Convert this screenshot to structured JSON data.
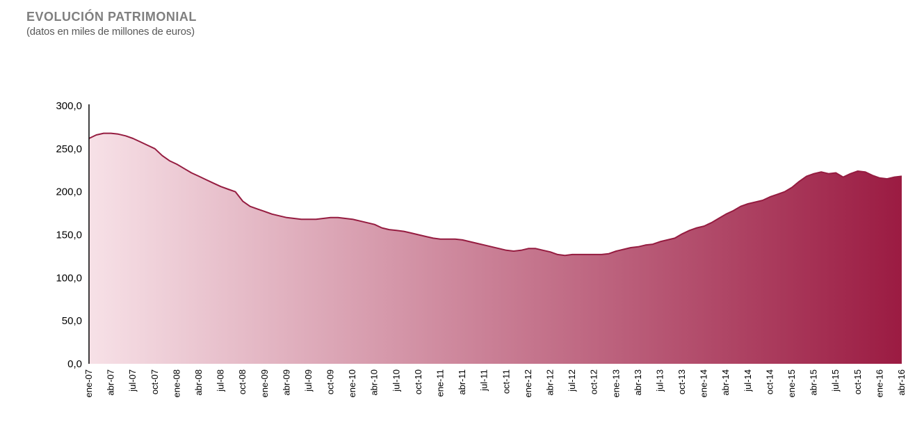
{
  "header": {
    "title": "EVOLUCIÓN PATRIMONIAL",
    "subtitle": "(datos en miles de millones de euros)"
  },
  "chart_data": {
    "type": "area",
    "title": "EVOLUCIÓN PATRIMONIAL",
    "subtitle": "(datos en miles de millones de euros)",
    "ylabel": "",
    "xlabel": "",
    "ylim": [
      0,
      300
    ],
    "grid": false,
    "legend": "none",
    "y_tick_values": [
      0,
      50,
      100,
      150,
      200,
      250,
      300
    ],
    "y_tick_labels": [
      "0,0",
      "50,0",
      "100,0",
      "150,0",
      "200,0",
      "250,0",
      "300,0"
    ],
    "x_tick_interval_months": 3,
    "x_tick_labels": [
      "ene-07",
      "abr-07",
      "jul-07",
      "oct-07",
      "ene-08",
      "abr-08",
      "jul-08",
      "oct-08",
      "ene-09",
      "abr-09",
      "jul-09",
      "oct-09",
      "ene-10",
      "abr-10",
      "jul-10",
      "oct-10",
      "ene-11",
      "abr-11",
      "jul-11",
      "oct-11",
      "ene-12",
      "abr-12",
      "jul-12",
      "oct-12",
      "ene-13",
      "abr-13",
      "jul-13",
      "oct-13",
      "ene-14",
      "abr-14",
      "jul-14",
      "oct-14",
      "ene-15",
      "abr-15",
      "jul-15",
      "oct-15",
      "ene-16",
      "abr-16"
    ],
    "values_monthly": [
      262,
      266,
      268,
      268,
      267,
      265,
      262,
      258,
      254,
      250,
      242,
      236,
      232,
      227,
      222,
      218,
      214,
      210,
      206,
      203,
      200,
      189,
      183,
      180,
      177,
      174,
      172,
      170,
      169,
      168,
      168,
      168,
      169,
      170,
      170,
      169,
      168,
      166,
      164,
      162,
      158,
      156,
      155,
      154,
      152,
      150,
      148,
      146,
      145,
      145,
      145,
      144,
      142,
      140,
      138,
      136,
      134,
      132,
      131,
      132,
      134,
      134,
      132,
      130,
      127,
      126,
      127,
      127,
      127,
      127,
      127,
      128,
      131,
      133,
      135,
      136,
      138,
      139,
      142,
      144,
      146,
      151,
      155,
      158,
      160,
      164,
      169,
      174,
      178,
      183,
      186,
      188,
      190,
      194,
      197,
      200,
      205,
      212,
      218,
      221,
      223,
      221,
      222,
      217,
      221,
      224,
      223,
      219,
      216,
      215,
      217,
      218
    ],
    "colors": {
      "line": "#951c40",
      "fill_start": "#f7e1e7",
      "fill_end": "#9b1b42",
      "axis": "#000000"
    }
  }
}
